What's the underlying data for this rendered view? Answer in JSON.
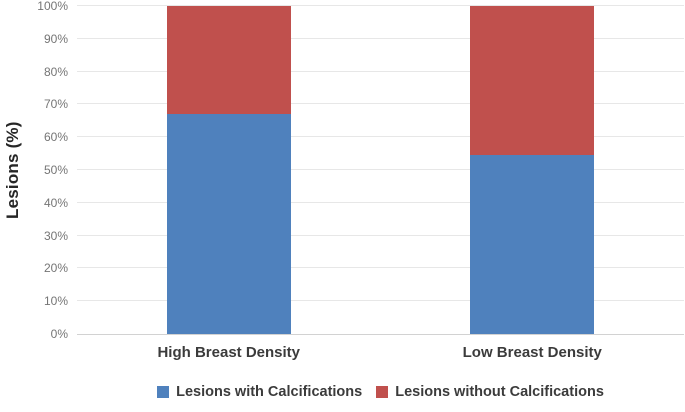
{
  "chart_data": {
    "type": "bar",
    "subtype": "stacked-100-percent",
    "title": "",
    "ylabel": "Lesions (%)",
    "xlabel": "",
    "categories": [
      "High Breast Density",
      "Low Breast Density"
    ],
    "series": [
      {
        "name": "Lesions with Calcifications",
        "color": "#4F81BD",
        "values": [
          67,
          54.5
        ]
      },
      {
        "name": "Lesions without Calcifications",
        "color": "#C0504D",
        "values": [
          33,
          45.5
        ]
      }
    ],
    "y_axis": {
      "min": 0,
      "max": 100,
      "step": 10,
      "tick_suffix": "%"
    },
    "tick_labels": [
      "0%",
      "10%",
      "20%",
      "30%",
      "40%",
      "50%",
      "60%",
      "70%",
      "80%",
      "90%",
      "100%"
    ],
    "grid": true,
    "legend_position": "bottom",
    "colors": {
      "blue_series": "#4F81BD",
      "red_series": "#C0504D",
      "gridline": "#e7e7e7",
      "axis_line": "#d2d2d2",
      "tick_text": "#757575",
      "label_text": "#3b3b3b"
    }
  }
}
